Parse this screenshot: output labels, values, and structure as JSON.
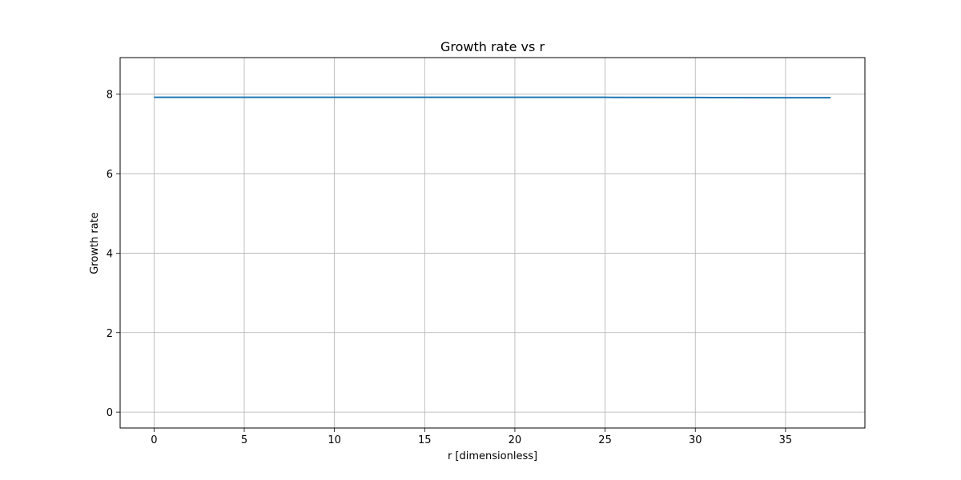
{
  "chart_data": {
    "type": "line",
    "title": "Growth rate vs r",
    "xlabel": "r [dimensionless]",
    "ylabel": "Growth rate",
    "xlim": [
      -1.88,
      39.4
    ],
    "ylim": [
      -0.4,
      8.92
    ],
    "x_ticks": [
      0,
      5,
      10,
      15,
      20,
      25,
      30,
      35
    ],
    "y_ticks": [
      0,
      2,
      4,
      6,
      8
    ],
    "grid": true,
    "series": [
      {
        "color": "#1f77b4",
        "x": [
          0,
          5,
          10,
          15,
          20,
          25,
          30,
          35,
          37.5
        ],
        "y": [
          7.92,
          7.92,
          7.92,
          7.92,
          7.92,
          7.92,
          7.915,
          7.91,
          7.91
        ]
      }
    ]
  }
}
